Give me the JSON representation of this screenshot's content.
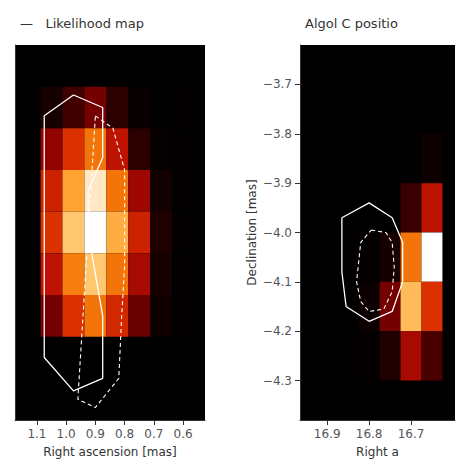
{
  "chart_data": [
    {
      "type": "heatmap",
      "title": "—   Likelihood map",
      "xlabel": "Right ascension [mas]",
      "xlim": [
        1.175,
        0.525
      ],
      "ylim": [
        -4.45,
        -3.55
      ],
      "xticks": [
        1.1,
        {
          "value": 1.0,
          "label": "1.0"
        },
        0.9,
        0.8,
        0.7,
        0.6
      ],
      "yticks": [],
      "grid": false,
      "x_edges": [
        1.0875,
        1.0125,
        0.9375,
        0.8625,
        0.7875,
        0.7125,
        0.6375,
        0.5625
      ],
      "y_edges": [
        -3.65,
        -3.65,
        -3.75,
        -3.85,
        -3.95,
        -4.05,
        -4.15,
        -4.25,
        -4.25
      ],
      "values": [
        [
          0.05,
          0.08,
          0.12,
          0.06,
          0.02,
          0.01,
          0.01
        ],
        [
          0.1,
          0.2,
          0.3,
          0.15,
          0.04,
          0.01,
          0.01
        ],
        [
          0.35,
          0.55,
          0.7,
          0.45,
          0.15,
          0.03,
          0.01
        ],
        [
          0.5,
          0.8,
          0.95,
          0.7,
          0.38,
          0.08,
          0.01
        ],
        [
          0.55,
          0.88,
          1.0,
          0.82,
          0.5,
          0.12,
          0.01
        ],
        [
          0.45,
          0.72,
          0.88,
          0.7,
          0.4,
          0.1,
          0.01
        ],
        [
          0.3,
          0.55,
          0.7,
          0.52,
          0.28,
          0.07,
          0.01
        ],
        [
          0.12,
          0.25,
          0.38,
          0.28,
          0.12,
          0.03,
          0.01
        ]
      ],
      "value_range": [
        0,
        1
      ],
      "series": [
        {
          "type": "line",
          "line_style": "solid",
          "color": "#ffffff",
          "x": [
            1.075,
            0.975,
            0.875,
            0.875,
            0.925,
            0.925,
            0.9,
            0.875,
            0.875,
            0.975,
            1.075,
            1.075
          ],
          "values": [
            -3.72,
            -3.67,
            -3.7,
            -3.82,
            -3.9,
            -4.0,
            -4.1,
            -4.2,
            -4.35,
            -4.38,
            -4.3,
            -3.72
          ]
        },
        {
          "type": "line",
          "line_style": "dashed",
          "color": "#ffffff",
          "x": [
            0.9,
            0.84,
            0.8,
            0.8,
            0.8,
            0.81,
            0.82,
            0.9,
            0.96,
            0.9
          ],
          "values": [
            -3.72,
            -3.75,
            -3.85,
            -3.95,
            -4.08,
            -4.2,
            -4.35,
            -4.42,
            -4.4,
            -3.72
          ]
        }
      ]
    },
    {
      "type": "heatmap",
      "title": "Algol C positio",
      "xlabel": "Right a",
      "ylabel": "Declination [mas]",
      "xlim": [
        16.965,
        16.595
      ],
      "ylim": [
        -4.38,
        -3.62
      ],
      "xticks": [
        16.9,
        16.8,
        16.7
      ],
      "yticks": [
        {
          "value": -3.7,
          "label": "−3.7"
        },
        {
          "value": -3.8,
          "label": "−3.8"
        },
        {
          "value": -3.9,
          "label": "−3.9"
        },
        {
          "value": -4.0,
          "label": "−4.0"
        },
        {
          "value": -4.1,
          "label": "−4.1"
        },
        {
          "value": -4.2,
          "label": "−4.2"
        },
        {
          "value": -4.3,
          "label": "−4.3"
        }
      ],
      "grid": false,
      "x_edges": [
        16.875,
        16.825,
        16.775,
        16.725,
        16.675,
        16.625
      ],
      "y_edges": [
        -3.7,
        -3.7,
        -3.8,
        -3.9,
        -4.0,
        -4.1,
        -4.2,
        -4.3,
        -4.3
      ],
      "values": [
        [
          0.0,
          0.0,
          0.0,
          0.0,
          0.0
        ],
        [
          0.0,
          0.0,
          0.0,
          0.0,
          0.0
        ],
        [
          0.0,
          0.0,
          0.0,
          0.01,
          0.06
        ],
        [
          0.0,
          0.0,
          0.0,
          0.18,
          0.45
        ],
        [
          0.0,
          0.02,
          0.1,
          0.7,
          1.0
        ],
        [
          0.0,
          0.05,
          0.3,
          0.85,
          0.55
        ],
        [
          0.0,
          0.02,
          0.12,
          0.4,
          0.22
        ],
        [
          0.0,
          0.0,
          0.01,
          0.05,
          0.02
        ]
      ],
      "value_range": [
        0,
        1
      ],
      "series": [
        {
          "type": "line",
          "line_style": "solid",
          "color": "#ffffff",
          "x": [
            16.865,
            16.8,
            16.745,
            16.72,
            16.72,
            16.745,
            16.8,
            16.855,
            16.865,
            16.865
          ],
          "values": [
            -3.97,
            -3.94,
            -3.97,
            -4.02,
            -4.1,
            -4.16,
            -4.18,
            -4.15,
            -4.08,
            -3.97
          ]
        },
        {
          "type": "line",
          "line_style": "dashed",
          "color": "#ffffff",
          "x": [
            16.795,
            16.76,
            16.745,
            16.74,
            16.745,
            16.765,
            16.8,
            16.82,
            16.83,
            16.82,
            16.795
          ],
          "values": [
            -3.995,
            -4.0,
            -4.02,
            -4.07,
            -4.12,
            -4.155,
            -4.16,
            -4.14,
            -4.1,
            -4.02,
            -3.995
          ]
        }
      ]
    }
  ]
}
